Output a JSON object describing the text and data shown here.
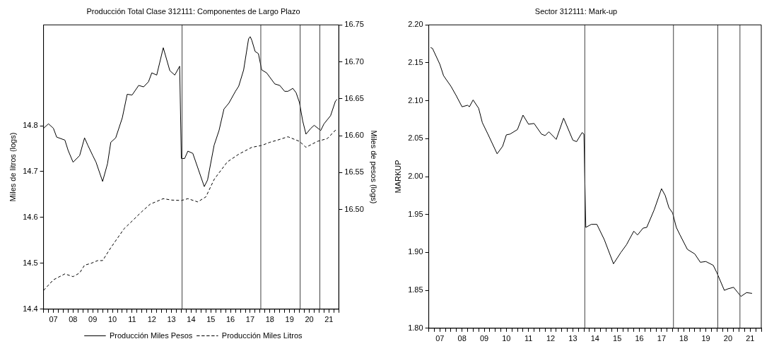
{
  "chart_data": [
    {
      "type": "line",
      "title": "Producción Total Clase 312111: Componentes de Largo Plazo",
      "ylabel": "Miles de litros (logs)",
      "y2label": "Miles de pesos (logs)",
      "legend": "bottom",
      "xlim": [
        "2007-01",
        "2022-01"
      ],
      "xticks": [
        {
          "value": "2007-01",
          "label": null
        },
        {
          "value": "2007-04",
          "label": null
        },
        {
          "value": "2007-07",
          "label": "07"
        },
        {
          "value": "2007-10",
          "label": null
        },
        {
          "value": "2008-01",
          "label": null
        },
        {
          "value": "2008-04",
          "label": null
        },
        {
          "value": "2008-07",
          "label": "08"
        },
        {
          "value": "2008-10",
          "label": null
        },
        {
          "value": "2009-01",
          "label": null
        },
        {
          "value": "2009-04",
          "label": null
        },
        {
          "value": "2009-07",
          "label": "09"
        },
        {
          "value": "2009-10",
          "label": null
        },
        {
          "value": "2010-01",
          "label": null
        },
        {
          "value": "2010-04",
          "label": null
        },
        {
          "value": "2010-07",
          "label": "10"
        },
        {
          "value": "2010-10",
          "label": null
        },
        {
          "value": "2011-01",
          "label": null
        },
        {
          "value": "2011-04",
          "label": null
        },
        {
          "value": "2011-07",
          "label": "11"
        },
        {
          "value": "2011-10",
          "label": null
        },
        {
          "value": "2012-01",
          "label": null
        },
        {
          "value": "2012-04",
          "label": null
        },
        {
          "value": "2012-07",
          "label": "12"
        },
        {
          "value": "2012-10",
          "label": null
        },
        {
          "value": "2013-01",
          "label": null
        },
        {
          "value": "2013-04",
          "label": null
        },
        {
          "value": "2013-07",
          "label": "13"
        },
        {
          "value": "2013-10",
          "label": null
        },
        {
          "value": "2014-01",
          "label": null
        },
        {
          "value": "2014-04",
          "label": null
        },
        {
          "value": "2014-07",
          "label": "14"
        },
        {
          "value": "2014-10",
          "label": null
        },
        {
          "value": "2015-01",
          "label": null
        },
        {
          "value": "2015-04",
          "label": null
        },
        {
          "value": "2015-07",
          "label": "15"
        },
        {
          "value": "2015-10",
          "label": null
        },
        {
          "value": "2016-01",
          "label": null
        },
        {
          "value": "2016-04",
          "label": null
        },
        {
          "value": "2016-07",
          "label": "16"
        },
        {
          "value": "2016-10",
          "label": null
        },
        {
          "value": "2017-01",
          "label": null
        },
        {
          "value": "2017-04",
          "label": null
        },
        {
          "value": "2017-07",
          "label": "17"
        },
        {
          "value": "2017-10",
          "label": null
        },
        {
          "value": "2018-01",
          "label": null
        },
        {
          "value": "2018-04",
          "label": null
        },
        {
          "value": "2018-07",
          "label": "18"
        },
        {
          "value": "2018-10",
          "label": null
        },
        {
          "value": "2019-01",
          "label": null
        },
        {
          "value": "2019-04",
          "label": null
        },
        {
          "value": "2019-07",
          "label": "19"
        },
        {
          "value": "2019-10",
          "label": null
        },
        {
          "value": "2020-01",
          "label": null
        },
        {
          "value": "2020-04",
          "label": null
        },
        {
          "value": "2020-07",
          "label": "20"
        },
        {
          "value": "2020-10",
          "label": null
        },
        {
          "value": "2021-01",
          "label": null
        },
        {
          "value": "2021-04",
          "label": null
        },
        {
          "value": "2021-07",
          "label": "21"
        },
        {
          "value": "2021-10",
          "label": null
        },
        {
          "value": "2022-01",
          "label": null
        }
      ],
      "ylim": [
        14.4,
        15.02
      ],
      "yticks": [
        14.4,
        14.5,
        14.6,
        14.7,
        14.8
      ],
      "y2lim": [
        16.365,
        16.75
      ],
      "y2ticks": [
        {
          "value": 16.5,
          "label": "16.50"
        },
        {
          "value": 16.55,
          "label": "16.55"
        },
        {
          "value": 16.6,
          "label": "16.60"
        },
        {
          "value": 16.65,
          "label": "16.65"
        },
        {
          "value": 16.7,
          "label": "16.70"
        },
        {
          "value": 16.75,
          "label": "16.75"
        }
      ],
      "ref_lines": [
        {
          "axis": "x",
          "value": "2014-01-15",
          "color": "#404040"
        },
        {
          "axis": "x",
          "value": "2018-01-15",
          "color": "#404040"
        },
        {
          "axis": "x",
          "value": "2020-01-15",
          "color": "#404040"
        },
        {
          "axis": "x",
          "value": "2021-01-15",
          "color": "#404040"
        }
      ],
      "series": [
        {
          "name": "Producción Miles Pesos",
          "color": "#000000",
          "axis": "y2",
          "line_style": "solid",
          "x": [
            "2007-01",
            "2007-04",
            "2007-07",
            "2007-09",
            "2008-02",
            "2008-04",
            "2008-07",
            "2008-11",
            "2009-02",
            "2009-04",
            "2009-07",
            "2009-09",
            "2010-01",
            "2010-04",
            "2010-06",
            "2010-09",
            "2011-01",
            "2011-04",
            "2011-07",
            "2011-11",
            "2012-02",
            "2012-05",
            "2012-07",
            "2012-10",
            "2013-02",
            "2013-06",
            "2013-09",
            "2013-12",
            "2014-01",
            "2014-03",
            "2014-05",
            "2014-08",
            "2015-03",
            "2015-05",
            "2015-09",
            "2015-12",
            "2016-03",
            "2016-06",
            "2016-10",
            "2016-12",
            "2017-03",
            "2017-06",
            "2017-07",
            "2017-08",
            "2017-10",
            "2017-12",
            "2018-02",
            "2018-05",
            "2018-10",
            "2019-01",
            "2019-04",
            "2019-06",
            "2019-09",
            "2019-11",
            "2020-01",
            "2020-03",
            "2020-05",
            "2020-08",
            "2020-10",
            "2021-02",
            "2021-04",
            "2021-08",
            "2021-11",
            "2021-12"
          ],
          "values": [
            16.61,
            16.616,
            16.61,
            16.598,
            16.594,
            16.58,
            16.564,
            16.573,
            16.597,
            16.587,
            16.573,
            16.564,
            16.538,
            16.562,
            16.591,
            16.597,
            16.624,
            16.656,
            16.655,
            16.668,
            16.666,
            16.673,
            16.685,
            16.682,
            16.719,
            16.688,
            16.682,
            16.694,
            16.569,
            16.569,
            16.579,
            16.576,
            16.531,
            16.54,
            16.587,
            16.607,
            16.636,
            16.644,
            16.66,
            16.667,
            16.689,
            16.731,
            16.734,
            16.729,
            16.714,
            16.711,
            16.689,
            16.685,
            16.67,
            16.668,
            16.66,
            16.66,
            16.664,
            16.658,
            16.645,
            16.62,
            16.602,
            16.61,
            16.614,
            16.607,
            16.616,
            16.627,
            16.647,
            16.649
          ]
        },
        {
          "name": "Producción Miles Litros",
          "color": "#000000",
          "axis": "y",
          "line_style": "dashed",
          "x": [
            "2007-01",
            "2007-07",
            "2008-02",
            "2008-07",
            "2008-11",
            "2009-02",
            "2009-06",
            "2009-10",
            "2010-01",
            "2010-06",
            "2011-02",
            "2012-01",
            "2012-06",
            "2013-02",
            "2013-07",
            "2014-01",
            "2014-05",
            "2014-11",
            "2015-04",
            "2015-09",
            "2016-05",
            "2016-12",
            "2017-08",
            "2018-02",
            "2018-07",
            "2018-11",
            "2019-06",
            "2020-01",
            "2020-05",
            "2020-12",
            "2021-06",
            "2021-12"
          ],
          "values": [
            14.441,
            14.464,
            14.477,
            14.471,
            14.479,
            14.496,
            14.5,
            14.506,
            14.506,
            14.534,
            14.575,
            14.613,
            14.629,
            14.641,
            14.638,
            14.637,
            14.641,
            14.634,
            14.645,
            14.683,
            14.721,
            14.738,
            14.753,
            14.757,
            14.764,
            14.768,
            14.776,
            14.766,
            14.753,
            14.766,
            14.772,
            14.794
          ]
        }
      ]
    },
    {
      "type": "line",
      "title": "Sector 312111: Mark-up",
      "ylabel": "MARKUP",
      "xlim": [
        "2007-01",
        "2022-01"
      ],
      "xticks": [
        {
          "value": "2007-01",
          "label": null
        },
        {
          "value": "2007-04",
          "label": null
        },
        {
          "value": "2007-07",
          "label": "07"
        },
        {
          "value": "2007-10",
          "label": null
        },
        {
          "value": "2008-01",
          "label": null
        },
        {
          "value": "2008-04",
          "label": null
        },
        {
          "value": "2008-07",
          "label": "08"
        },
        {
          "value": "2008-10",
          "label": null
        },
        {
          "value": "2009-01",
          "label": null
        },
        {
          "value": "2009-04",
          "label": null
        },
        {
          "value": "2009-07",
          "label": "09"
        },
        {
          "value": "2009-10",
          "label": null
        },
        {
          "value": "2010-01",
          "label": null
        },
        {
          "value": "2010-04",
          "label": null
        },
        {
          "value": "2010-07",
          "label": "10"
        },
        {
          "value": "2010-10",
          "label": null
        },
        {
          "value": "2011-01",
          "label": null
        },
        {
          "value": "2011-04",
          "label": null
        },
        {
          "value": "2011-07",
          "label": "11"
        },
        {
          "value": "2011-10",
          "label": null
        },
        {
          "value": "2012-01",
          "label": null
        },
        {
          "value": "2012-04",
          "label": null
        },
        {
          "value": "2012-07",
          "label": "12"
        },
        {
          "value": "2012-10",
          "label": null
        },
        {
          "value": "2013-01",
          "label": null
        },
        {
          "value": "2013-04",
          "label": null
        },
        {
          "value": "2013-07",
          "label": "13"
        },
        {
          "value": "2013-10",
          "label": null
        },
        {
          "value": "2014-01",
          "label": null
        },
        {
          "value": "2014-04",
          "label": null
        },
        {
          "value": "2014-07",
          "label": "14"
        },
        {
          "value": "2014-10",
          "label": null
        },
        {
          "value": "2015-01",
          "label": null
        },
        {
          "value": "2015-04",
          "label": null
        },
        {
          "value": "2015-07",
          "label": "15"
        },
        {
          "value": "2015-10",
          "label": null
        },
        {
          "value": "2016-01",
          "label": null
        },
        {
          "value": "2016-04",
          "label": null
        },
        {
          "value": "2016-07",
          "label": "16"
        },
        {
          "value": "2016-10",
          "label": null
        },
        {
          "value": "2017-01",
          "label": null
        },
        {
          "value": "2017-04",
          "label": null
        },
        {
          "value": "2017-07",
          "label": "17"
        },
        {
          "value": "2017-10",
          "label": null
        },
        {
          "value": "2018-01",
          "label": null
        },
        {
          "value": "2018-04",
          "label": null
        },
        {
          "value": "2018-07",
          "label": "18"
        },
        {
          "value": "2018-10",
          "label": null
        },
        {
          "value": "2019-01",
          "label": null
        },
        {
          "value": "2019-04",
          "label": null
        },
        {
          "value": "2019-07",
          "label": "19"
        },
        {
          "value": "2019-10",
          "label": null
        },
        {
          "value": "2020-01",
          "label": null
        },
        {
          "value": "2020-04",
          "label": null
        },
        {
          "value": "2020-07",
          "label": "20"
        },
        {
          "value": "2020-10",
          "label": null
        },
        {
          "value": "2021-01",
          "label": null
        },
        {
          "value": "2021-04",
          "label": null
        },
        {
          "value": "2021-07",
          "label": "21"
        },
        {
          "value": "2021-10",
          "label": null
        },
        {
          "value": "2022-01",
          "label": null
        }
      ],
      "ylim": [
        1.8,
        2.2
      ],
      "yticks": [
        {
          "value": 1.8,
          "label": "1.80"
        },
        {
          "value": 1.85,
          "label": "1.85"
        },
        {
          "value": 1.9,
          "label": "1.90"
        },
        {
          "value": 1.95,
          "label": "1.95"
        },
        {
          "value": 2.0,
          "label": "2.00"
        },
        {
          "value": 2.05,
          "label": "2.05"
        },
        {
          "value": 2.1,
          "label": "2.10"
        },
        {
          "value": 2.15,
          "label": "2.15"
        },
        {
          "value": 2.2,
          "label": "2.20"
        }
      ],
      "ref_lines": [
        {
          "axis": "x",
          "value": "2014-01-15",
          "color": "#404040"
        },
        {
          "axis": "x",
          "value": "2018-01-15",
          "color": "#404040"
        },
        {
          "axis": "x",
          "value": "2020-01-15",
          "color": "#404040"
        },
        {
          "axis": "x",
          "value": "2021-01-15",
          "color": "#404040"
        }
      ],
      "series": [
        {
          "color": "#000000",
          "line_style": "solid",
          "x": [
            "2007-02",
            "2007-03",
            "2007-07",
            "2007-09",
            "2008-01",
            "2008-04",
            "2008-07",
            "2008-10",
            "2008-11",
            "2009-01",
            "2009-04",
            "2009-06",
            "2009-09",
            "2010-02",
            "2010-05",
            "2010-07",
            "2010-09",
            "2011-01",
            "2011-04",
            "2011-07",
            "2011-10",
            "2012-02",
            "2012-04",
            "2012-06",
            "2012-10",
            "2013-02",
            "2013-07",
            "2013-09",
            "2013-12",
            "2014-01",
            "2014-02",
            "2014-05",
            "2014-08",
            "2014-12",
            "2015-05",
            "2015-09",
            "2015-12",
            "2016-04",
            "2016-06",
            "2016-09",
            "2016-11",
            "2017-03",
            "2017-07",
            "2017-09",
            "2017-11",
            "2018-01",
            "2018-03",
            "2018-05",
            "2018-09",
            "2019-01",
            "2019-04",
            "2019-07",
            "2019-11",
            "2020-01",
            "2020-05",
            "2020-07",
            "2020-10",
            "2020-12",
            "2021-02",
            "2021-05",
            "2021-08"
          ],
          "values": [
            2.17,
            2.169,
            2.148,
            2.133,
            2.119,
            2.106,
            2.092,
            2.094,
            2.092,
            2.101,
            2.09,
            2.071,
            2.056,
            2.03,
            2.04,
            2.055,
            2.056,
            2.062,
            2.081,
            2.069,
            2.07,
            2.056,
            2.054,
            2.059,
            2.049,
            2.077,
            2.048,
            2.046,
            2.058,
            2.056,
            1.933,
            1.937,
            1.937,
            1.917,
            1.885,
            1.9,
            1.91,
            1.928,
            1.923,
            1.932,
            1.933,
            1.956,
            1.984,
            1.975,
            1.959,
            1.952,
            1.933,
            1.923,
            1.904,
            1.898,
            1.887,
            1.888,
            1.883,
            1.873,
            1.85,
            1.852,
            1.854,
            1.848,
            1.842,
            1.847,
            1.846
          ]
        }
      ]
    }
  ]
}
